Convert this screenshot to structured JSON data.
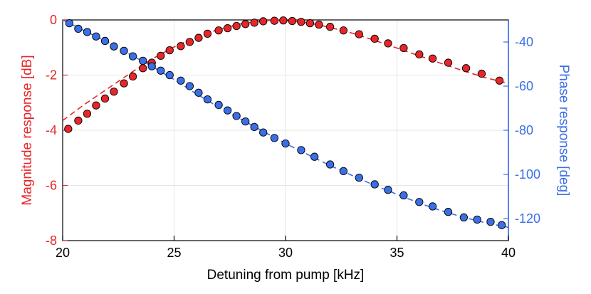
{
  "chart_data": {
    "type": "scatter",
    "xlabel": "Detuning from pump [kHz]",
    "ylabel_left": "Magnitude response [dB]",
    "ylabel_right": "Phase response [deg]",
    "xlim": [
      20,
      40
    ],
    "ylim_left": [
      -8,
      0
    ],
    "ylim_right": [
      -130,
      -30
    ],
    "x_ticks": [
      20,
      25,
      30,
      35,
      40
    ],
    "y_left_ticks": [
      -8,
      -6,
      -4,
      -2,
      0
    ],
    "y_right_ticks": [
      -120,
      -100,
      -80,
      -60,
      -40
    ],
    "grid": true,
    "colors": {
      "magnitude": "#e8262a",
      "phase": "#3b6fe6",
      "fit": "dashed"
    },
    "series": [
      {
        "axis": "left",
        "kind": "points",
        "color": "#e8262a",
        "x": [
          20.25,
          20.7,
          21.1,
          21.5,
          21.9,
          22.3,
          22.75,
          23.15,
          23.6,
          24.0,
          24.4,
          24.8,
          25.3,
          25.7,
          26.1,
          26.5,
          27.0,
          27.4,
          27.8,
          28.2,
          28.6,
          29.0,
          29.5,
          29.9,
          30.3,
          30.7,
          31.1,
          31.5,
          32.0,
          32.6,
          33.3,
          34.0,
          34.6,
          35.3,
          36.0,
          36.6,
          37.3,
          38.1,
          38.8,
          39.6
        ],
        "y": [
          -3.95,
          -3.65,
          -3.4,
          -3.1,
          -2.85,
          -2.6,
          -2.3,
          -2.05,
          -1.75,
          -1.55,
          -1.3,
          -1.1,
          -0.95,
          -0.8,
          -0.65,
          -0.5,
          -0.38,
          -0.3,
          -0.22,
          -0.15,
          -0.1,
          -0.05,
          -0.03,
          -0.02,
          -0.04,
          -0.07,
          -0.12,
          -0.17,
          -0.25,
          -0.38,
          -0.52,
          -0.68,
          -0.85,
          -1.02,
          -1.25,
          -1.4,
          -1.55,
          -1.75,
          -1.95,
          -2.2
        ]
      },
      {
        "axis": "left",
        "kind": "fit",
        "color": "#e8262a",
        "x": [
          20.0,
          21.0,
          22.0,
          23.0,
          24.0,
          25.0,
          26.0,
          27.0,
          28.0,
          29.0,
          29.6,
          30.0,
          31.0,
          32.0,
          33.0,
          34.0,
          35.0,
          36.0,
          37.0,
          38.0,
          39.0,
          40.0
        ],
        "y": [
          -3.65,
          -3.05,
          -2.5,
          -1.95,
          -1.42,
          -0.98,
          -0.62,
          -0.34,
          -0.14,
          -0.03,
          0.0,
          -0.02,
          -0.1,
          -0.27,
          -0.48,
          -0.74,
          -1.02,
          -1.3,
          -1.58,
          -1.85,
          -2.1,
          -2.3
        ]
      },
      {
        "axis": "right",
        "kind": "points",
        "color": "#3b6fe6",
        "x": [
          20.3,
          20.7,
          21.1,
          21.5,
          21.9,
          22.3,
          22.75,
          23.15,
          23.6,
          24.0,
          24.4,
          24.8,
          25.3,
          25.7,
          26.1,
          26.5,
          27.0,
          27.4,
          27.8,
          28.2,
          28.6,
          29.0,
          29.5,
          30.0,
          30.7,
          31.3,
          32.0,
          32.6,
          33.3,
          34.0,
          34.6,
          35.3,
          36.0,
          36.6,
          37.3,
          38.0,
          38.6,
          39.2,
          39.7
        ],
        "y": [
          -31.5,
          -34.0,
          -35.5,
          -37.5,
          -39.5,
          -42.0,
          -44.0,
          -46.5,
          -48.5,
          -51.0,
          -53.0,
          -55.0,
          -57.5,
          -60.0,
          -63.0,
          -66.0,
          -68.5,
          -71.0,
          -73.5,
          -76.0,
          -78.5,
          -81.0,
          -83.5,
          -86.0,
          -89.0,
          -92.0,
          -95.5,
          -98.5,
          -101.5,
          -104.5,
          -107.0,
          -109.5,
          -112.5,
          -114.5,
          -117.0,
          -119.5,
          -120.5,
          -121.5,
          -123.0
        ]
      },
      {
        "axis": "right",
        "kind": "fit",
        "color": "#3b6fe6",
        "x": [
          20.0,
          21.0,
          22.0,
          23.0,
          24.0,
          25.0,
          26.0,
          27.0,
          28.0,
          29.0,
          30.0,
          31.0,
          32.0,
          33.0,
          34.0,
          35.0,
          36.0,
          37.0,
          38.0,
          39.0,
          40.0
        ],
        "y": [
          -30.0,
          -35.0,
          -40.0,
          -45.5,
          -51.0,
          -57.0,
          -63.5,
          -69.5,
          -75.0,
          -80.5,
          -86.0,
          -91.0,
          -96.0,
          -100.5,
          -105.0,
          -109.0,
          -113.0,
          -116.5,
          -119.5,
          -122.0,
          -124.0
        ]
      }
    ]
  }
}
